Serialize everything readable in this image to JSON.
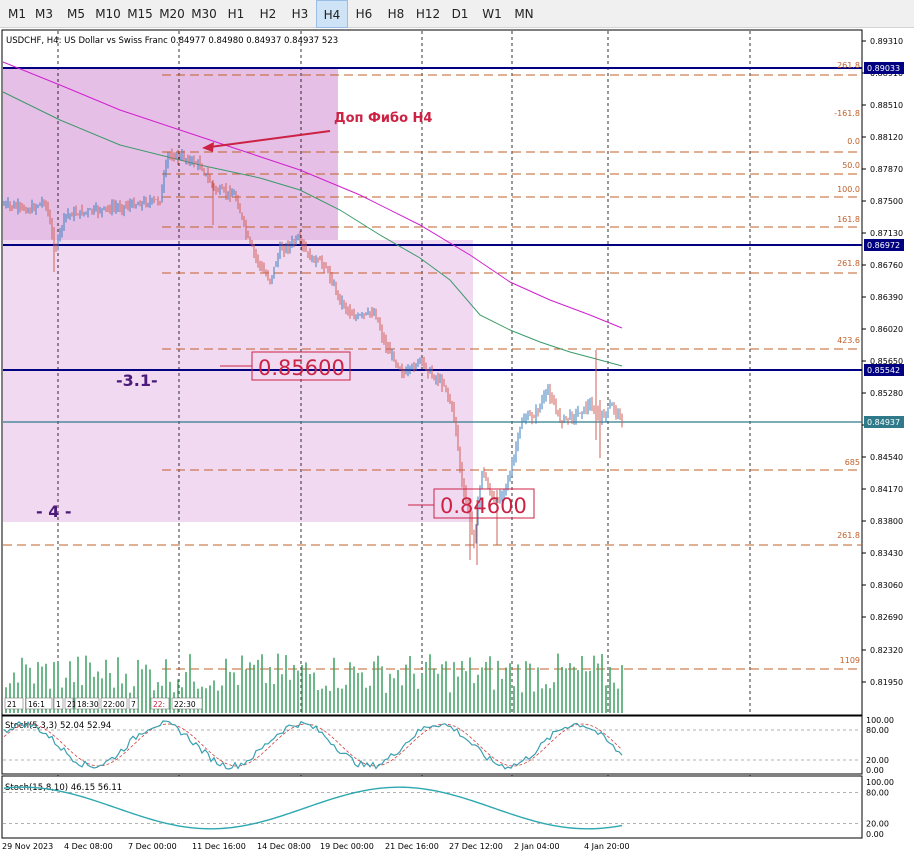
{
  "toolbar": {
    "timeframes": [
      "M1",
      "M3",
      "M5",
      "M10",
      "M15",
      "M20",
      "M30",
      "H1",
      "H2",
      "H3",
      "H4",
      "H6",
      "H8",
      "H12",
      "D1",
      "W1",
      "MN"
    ],
    "active": "H4"
  },
  "main": {
    "info": "USDCHF, H4:  US Dollar vs Swiss Franc  0.84977 0.84980 0.84937 0.84937  523",
    "annotation": "Доп Фибо Н4",
    "box_price_1": "0.85600",
    "box_price_2": "0.84600",
    "wave_label_1": "-3.1-",
    "wave_label_2": "- 4 -",
    "price_ticks": [
      "0.89310",
      "0.88910",
      "0.88510",
      "0.88120",
      "0.87870",
      "0.87500",
      "0.87130",
      "0.86760",
      "0.86390",
      "0.86020",
      "0.85650",
      "0.85280",
      "0.84910",
      "0.84540",
      "0.84170",
      "0.83800",
      "0.83430",
      "0.83060",
      "0.82690",
      "0.82320",
      "0.81950"
    ],
    "highlighted_prices": [
      {
        "value": "0.89033",
        "color": "#000080"
      },
      {
        "value": "0.86972",
        "color": "#000080"
      },
      {
        "value": "0.85542",
        "color": "#000080"
      },
      {
        "value": "0.84937",
        "color": "#2e7a8a"
      }
    ],
    "fib_labels": [
      "261.8",
      "-161.8",
      "0.0",
      "50.0",
      "100.0",
      "161.8",
      "261.8",
      "423.6",
      "685",
      "261.8",
      "1109"
    ],
    "time_ticks": [
      "29 Nov 2023",
      "4 Dec 08:00",
      "7 Dec 00:00",
      "11 Dec 16:00",
      "14 Dec 08:00",
      "19 Dec 00:00",
      "21 Dec 16:00",
      "27 Dec 12:00",
      "2 Jan 04:00",
      "4 Jan 20:00"
    ],
    "mini_tags": [
      "21",
      "16:1",
      "1",
      "21.0",
      "18:30",
      "22:00",
      "7",
      "22:",
      "22:30"
    ]
  },
  "stoch1": {
    "label": "Stoch(5,3,3) 52.04 52.94",
    "levels": [
      "100.00",
      "80.00",
      "20.00",
      "0.00"
    ]
  },
  "stoch2": {
    "label": "Stoch(15,8,10) 46.15 56.11",
    "levels": [
      "100.00",
      "80.00",
      "20.00",
      "0.00"
    ]
  },
  "colors": {
    "bull": "#3f7fbf",
    "bear": "#d0605a",
    "ma_fast": "#3a9a6a",
    "ma_slow": "#d020d0",
    "zone_dark": "#e6bfe6",
    "zone_light": "#f2d9f2",
    "annotation": "#cc2244"
  }
}
